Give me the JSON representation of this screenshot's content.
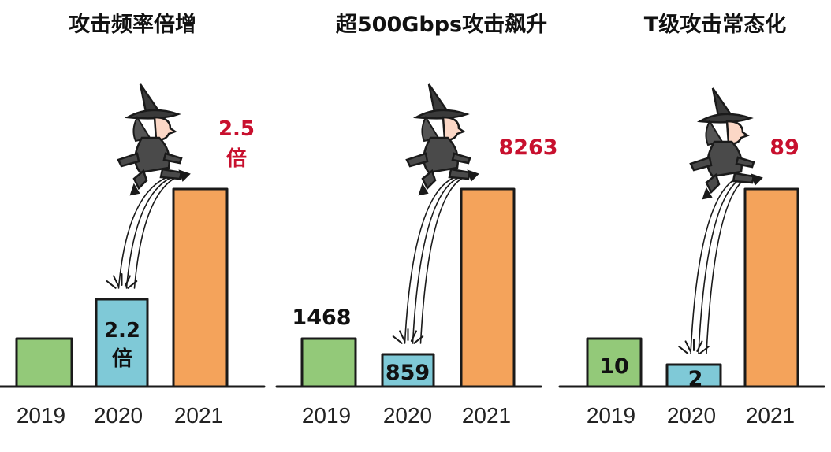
{
  "chart_data": [
    {
      "type": "bar",
      "title": "攻击频率倍增",
      "categories": [
        "2019",
        "2020",
        "2021"
      ],
      "bar_colors": [
        "#93c979",
        "#7fc9d7",
        "#f4a35b"
      ],
      "bar_labels": [
        "",
        "2.2\n倍",
        ""
      ],
      "annotation": "2.5\n倍"
    },
    {
      "type": "bar",
      "title": "超500Gbps攻击飙升",
      "categories": [
        "2019",
        "2020",
        "2021"
      ],
      "values": [
        1468,
        859,
        8263
      ],
      "bar_colors": [
        "#93c979",
        "#7fc9d7",
        "#f4a35b"
      ],
      "bar_labels": [
        "1468",
        "859",
        "8263"
      ]
    },
    {
      "type": "bar",
      "title": "T级攻击常态化",
      "categories": [
        "2019",
        "2020",
        "2021"
      ],
      "values": [
        10,
        2,
        89
      ],
      "bar_colors": [
        "#93c979",
        "#7fc9d7",
        "#f4a35b"
      ],
      "bar_labels": [
        "10",
        "2",
        "89"
      ]
    }
  ],
  "colors": {
    "accent_red": "#c8102e",
    "ink": "#1a1a1a"
  }
}
